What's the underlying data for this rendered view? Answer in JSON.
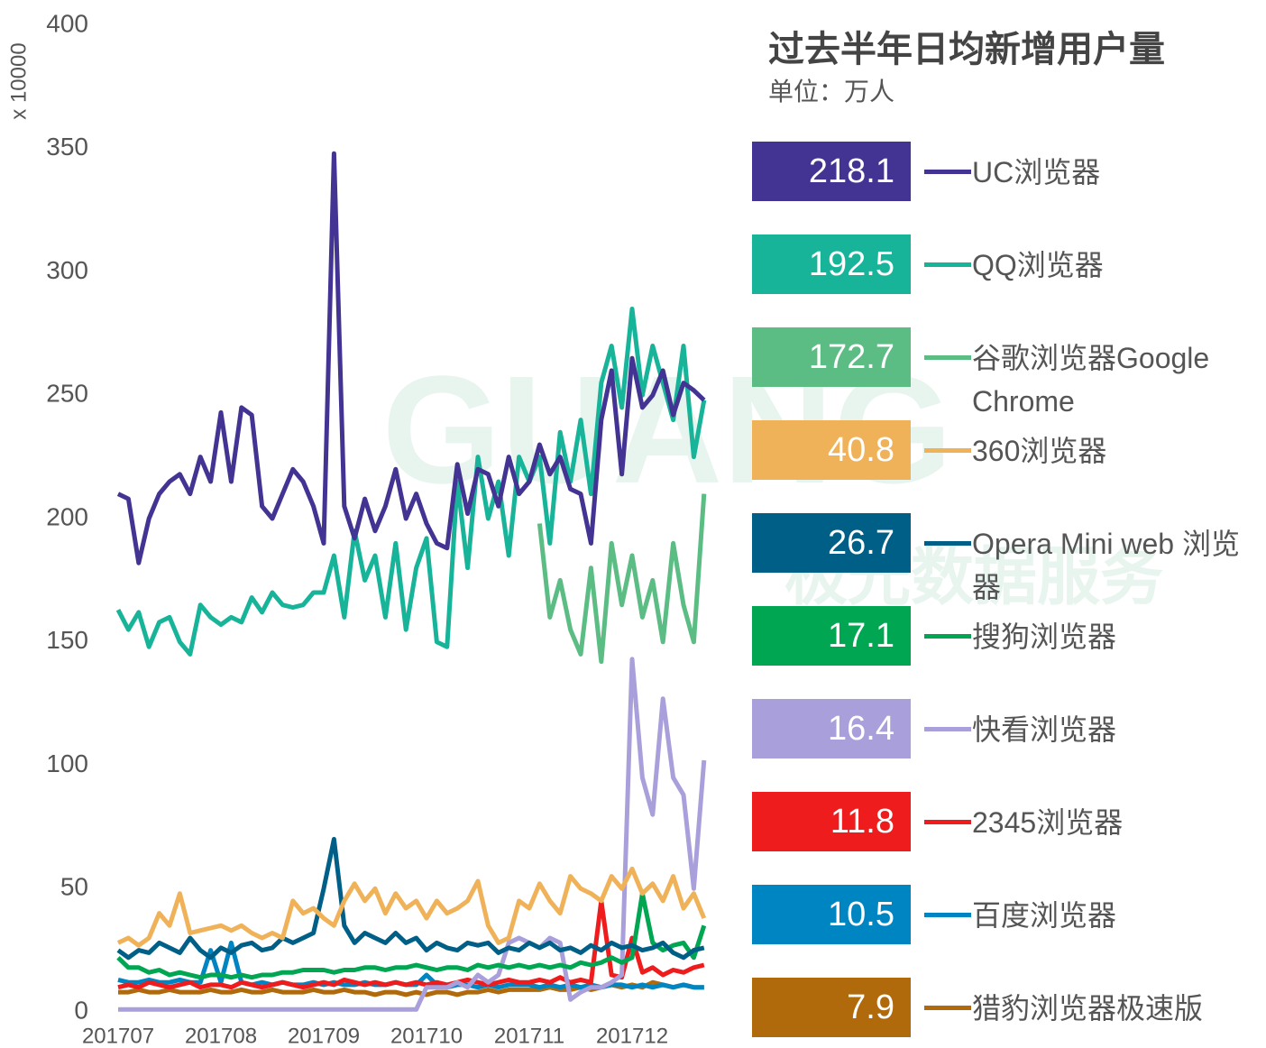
{
  "chart_data": {
    "type": "line",
    "title": "过去半年日均新增用户量",
    "subtitle": "单位：万人",
    "y_label": "x 10000",
    "watermark": [
      "GUANG",
      "极光数据服务"
    ],
    "categories": [
      "201707",
      null,
      null,
      null,
      null,
      null,
      null,
      null,
      null,
      null,
      "201708",
      null,
      null,
      null,
      null,
      null,
      null,
      null,
      null,
      null,
      "201709",
      null,
      null,
      null,
      null,
      null,
      null,
      null,
      null,
      null,
      "201710",
      null,
      null,
      null,
      null,
      null,
      null,
      null,
      null,
      null,
      "201711",
      null,
      null,
      null,
      null,
      null,
      null,
      null,
      null,
      null,
      "201712",
      null,
      null,
      null,
      null,
      null,
      null,
      null
    ],
    "ylim": [
      0,
      400
    ],
    "yticks": [
      0,
      50,
      100,
      150,
      200,
      250,
      300,
      350,
      400
    ],
    "grid": false,
    "legend": "right",
    "series": [
      {
        "name": "UC浏览器",
        "avg": 218.1,
        "color": "#433393",
        "values": [
          210,
          208,
          182,
          200,
          210,
          215,
          218,
          210,
          225,
          215,
          243,
          215,
          245,
          242,
          205,
          200,
          210,
          220,
          215,
          205,
          190,
          348,
          205,
          192,
          208,
          195,
          205,
          220,
          200,
          210,
          198,
          190,
          188,
          222,
          202,
          220,
          218,
          205,
          225,
          210,
          215,
          230,
          218,
          225,
          212,
          210,
          190,
          240,
          260,
          218,
          265,
          245,
          250,
          260,
          242,
          255,
          252,
          248
        ]
      },
      {
        "name": "QQ浏览器",
        "avg": 192.5,
        "color": "#18b49a",
        "values": [
          163,
          155,
          162,
          148,
          158,
          160,
          150,
          145,
          165,
          160,
          157,
          160,
          158,
          168,
          162,
          170,
          165,
          164,
          165,
          170,
          170,
          185,
          160,
          195,
          175,
          185,
          160,
          190,
          155,
          180,
          192,
          150,
          148,
          215,
          180,
          225,
          200,
          215,
          185,
          225,
          215,
          225,
          190,
          235,
          215,
          240,
          210,
          255,
          270,
          245,
          285,
          250,
          270,
          255,
          240,
          270,
          225,
          248
        ]
      },
      {
        "name": "谷歌浏览器Google Chrome",
        "avg": 172.7,
        "color": "#5bbd84",
        "values": [
          null,
          null,
          null,
          null,
          null,
          null,
          null,
          null,
          null,
          null,
          null,
          null,
          null,
          null,
          null,
          null,
          null,
          null,
          null,
          null,
          null,
          null,
          null,
          null,
          null,
          null,
          null,
          null,
          null,
          null,
          null,
          null,
          null,
          null,
          null,
          null,
          null,
          null,
          null,
          null,
          null,
          198,
          160,
          175,
          155,
          145,
          180,
          142,
          190,
          165,
          185,
          160,
          175,
          150,
          190,
          165,
          150,
          210
        ]
      },
      {
        "name": "360浏览器",
        "avg": 40.8,
        "color": "#f0b259",
        "values": [
          28,
          30,
          27,
          30,
          40,
          35,
          48,
          32,
          33,
          34,
          35,
          33,
          35,
          32,
          30,
          32,
          30,
          45,
          40,
          42,
          38,
          35,
          45,
          52,
          45,
          50,
          40,
          48,
          42,
          45,
          38,
          45,
          40,
          42,
          45,
          53,
          35,
          28,
          30,
          45,
          42,
          52,
          45,
          40,
          55,
          50,
          48,
          45,
          55,
          50,
          58,
          48,
          52,
          45,
          55,
          42,
          48,
          38
        ]
      },
      {
        "name": "Opera Mini web 浏览器",
        "avg": 26.7,
        "color": "#005f87",
        "values": [
          25,
          22,
          25,
          24,
          28,
          26,
          24,
          30,
          25,
          22,
          26,
          24,
          27,
          28,
          25,
          26,
          30,
          28,
          30,
          32,
          50,
          70,
          35,
          28,
          32,
          30,
          28,
          32,
          28,
          30,
          25,
          28,
          26,
          25,
          28,
          27,
          28,
          24,
          26,
          25,
          28,
          26,
          28,
          25,
          26,
          24,
          27,
          25,
          28,
          26,
          27,
          25,
          26,
          28,
          24,
          22,
          25,
          26
        ]
      },
      {
        "name": "搜狗浏览器",
        "avg": 17.1,
        "color": "#00a651",
        "values": [
          22,
          18,
          18,
          16,
          17,
          15,
          16,
          15,
          14,
          15,
          15,
          14,
          15,
          14,
          15,
          15,
          16,
          16,
          17,
          17,
          17,
          16,
          17,
          17,
          18,
          18,
          17,
          18,
          18,
          19,
          18,
          17,
          18,
          18,
          17,
          19,
          18,
          19,
          18,
          19,
          18,
          19,
          18,
          19,
          18,
          20,
          19,
          20,
          22,
          20,
          22,
          48,
          28,
          25,
          27,
          28,
          22,
          35
        ]
      },
      {
        "name": "快看浏览器",
        "avg": 16.4,
        "color": "#a99fdb",
        "values": [
          1,
          1,
          1,
          1,
          1,
          1,
          1,
          1,
          1,
          1,
          1,
          1,
          1,
          1,
          1,
          1,
          1,
          1,
          1,
          1,
          1,
          1,
          1,
          1,
          1,
          1,
          1,
          1,
          1,
          1,
          10,
          10,
          10,
          12,
          10,
          15,
          12,
          15,
          28,
          30,
          28,
          26,
          30,
          28,
          5,
          8,
          10,
          10,
          12,
          15,
          143,
          95,
          80,
          127,
          95,
          88,
          50,
          102
        ]
      },
      {
        "name": "2345浏览器",
        "avg": 11.8,
        "color": "#ee1c1c",
        "values": [
          10,
          11,
          10,
          12,
          11,
          10,
          11,
          12,
          10,
          11,
          11,
          10,
          12,
          11,
          10,
          11,
          12,
          11,
          10,
          11,
          12,
          11,
          13,
          12,
          11,
          12,
          11,
          12,
          11,
          12,
          11,
          12,
          11,
          12,
          13,
          12,
          11,
          12,
          13,
          12,
          12,
          13,
          12,
          14,
          12,
          13,
          12,
          45,
          15,
          14,
          30,
          16,
          18,
          15,
          17,
          16,
          18,
          19
        ]
      },
      {
        "name": "百度浏览器",
        "avg": 10.5,
        "color": "#0085c3",
        "values": [
          13,
          12,
          12,
          13,
          12,
          12,
          13,
          12,
          12,
          25,
          12,
          28,
          12,
          11,
          12,
          11,
          12,
          11,
          11,
          12,
          11,
          12,
          11,
          11,
          12,
          11,
          11,
          12,
          11,
          11,
          15,
          11,
          10,
          11,
          11,
          10,
          11,
          10,
          11,
          11,
          11,
          10,
          11,
          10,
          11,
          10,
          11,
          10,
          11,
          11,
          10,
          11,
          10,
          11,
          10,
          11,
          10,
          10
        ]
      },
      {
        "name": "猎豹浏览器极速版",
        "avg": 7.9,
        "color": "#b06a0c",
        "values": [
          8,
          8,
          9,
          8,
          8,
          9,
          8,
          8,
          8,
          9,
          8,
          8,
          9,
          8,
          8,
          9,
          8,
          8,
          8,
          9,
          8,
          8,
          9,
          8,
          8,
          7,
          8,
          8,
          7,
          8,
          7,
          8,
          8,
          7,
          8,
          8,
          9,
          8,
          9,
          9,
          9,
          9,
          10,
          9,
          9,
          10,
          9,
          10,
          11,
          10,
          11,
          10,
          12,
          11,
          10,
          11,
          10,
          10
        ]
      }
    ]
  }
}
